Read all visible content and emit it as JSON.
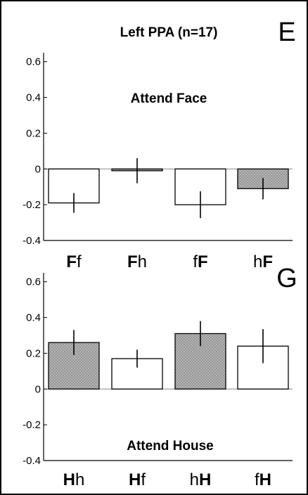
{
  "chart_data": [
    {
      "type": "bar",
      "panel_letter": "E",
      "title": "Left PPA (n=17)",
      "annotation": "Attend Face",
      "categories": [
        {
          "bold": "F",
          "plain": "f",
          "bold_first": true
        },
        {
          "bold": "F",
          "plain": "h",
          "bold_first": true
        },
        {
          "bold": "F",
          "plain": "f",
          "bold_first": false
        },
        {
          "bold": "F",
          "plain": "h",
          "bold_first": false
        }
      ],
      "values": [
        -0.19,
        -0.01,
        -0.2,
        -0.11
      ],
      "errors": [
        0.055,
        0.07,
        0.075,
        0.06
      ],
      "fill": [
        "white",
        "hatched",
        "white",
        "hatched"
      ],
      "ylim": [
        -0.4,
        0.65
      ],
      "yticks": [
        "0.6",
        "0.4",
        "0.2",
        "0",
        "-0.2",
        "-0.4"
      ],
      "ytick_values": [
        0.6,
        0.4,
        0.2,
        0,
        -0.2,
        -0.4
      ],
      "zero_line": true
    },
    {
      "type": "bar",
      "panel_letter": "G",
      "title": "",
      "annotation": "Attend House",
      "categories": [
        {
          "bold": "H",
          "plain": "h",
          "bold_first": true
        },
        {
          "bold": "H",
          "plain": "f",
          "bold_first": true
        },
        {
          "bold": "H",
          "plain": "h",
          "bold_first": false
        },
        {
          "bold": "H",
          "plain": "f",
          "bold_first": false
        }
      ],
      "values": [
        0.26,
        0.17,
        0.31,
        0.24
      ],
      "errors": [
        0.07,
        0.05,
        0.07,
        0.095
      ],
      "fill": [
        "hatched",
        "white",
        "hatched",
        "white"
      ],
      "ylim": [
        -0.4,
        0.65
      ],
      "yticks": [
        "0.6",
        "0.4",
        "0.2",
        "0",
        "-0.2",
        "-0.4"
      ],
      "ytick_values": [
        0.6,
        0.4,
        0.2,
        0,
        -0.2,
        -0.4
      ],
      "zero_line": true
    }
  ],
  "colors": {
    "frame": "#000000",
    "bar_outline": "#000000",
    "hatch_fill": "#b8b8b8",
    "hatch_line": "#8a8a8a",
    "white_fill": "#ffffff",
    "zero_line": "#888888"
  }
}
